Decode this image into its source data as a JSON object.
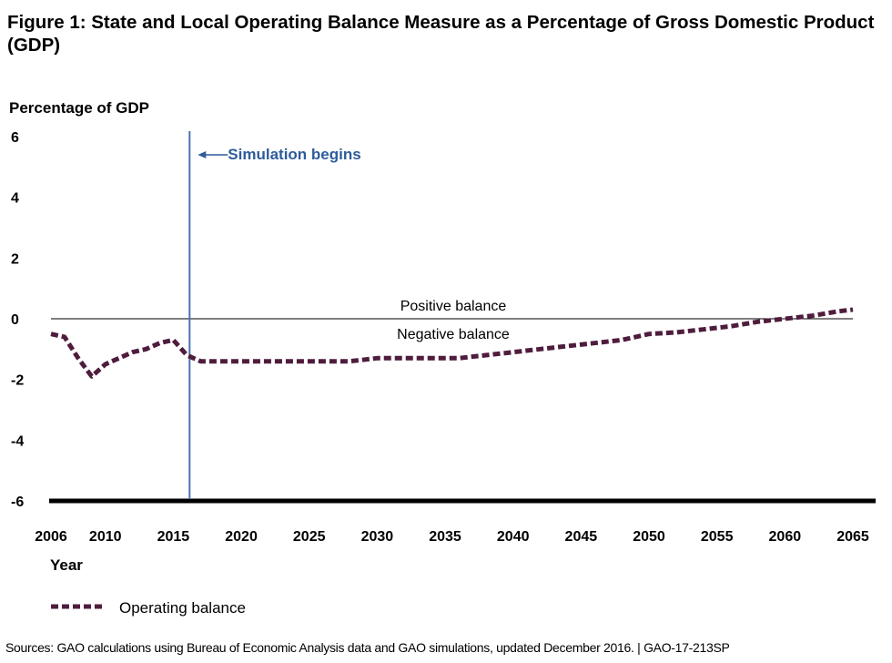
{
  "page": {
    "title": "Figure 1: State and Local Operating Balance Measure as a Percentage of Gross Domestic Product (GDP)",
    "source": "Sources: GAO calculations using Bureau of Economic Analysis data and GAO simulations, updated December 2016. | GAO-17-213SP"
  },
  "chart_data": {
    "type": "line",
    "title": "Figure 1: State and Local Operating Balance Measure as a Percentage of Gross Domestic Product (GDP)",
    "xlabel": "Year",
    "ylabel": "Percentage of GDP",
    "xlim": [
      2006,
      2065
    ],
    "ylim": [
      -6,
      6
    ],
    "x_ticks": [
      2006,
      2010,
      2015,
      2020,
      2025,
      2030,
      2035,
      2040,
      2045,
      2050,
      2055,
      2060,
      2065
    ],
    "y_ticks": [
      6,
      4,
      2,
      0,
      -2,
      -4,
      -6
    ],
    "grid": false,
    "legend": "bottom-left",
    "colors": {
      "series": "#4f1c3d",
      "marker": "#4a72b0",
      "marker_text": "#2e5c9a",
      "zero_line": "#000000"
    },
    "annotations": {
      "marker_label": "Simulation begins",
      "marker_x": 2016.2,
      "positive_label": "Positive balance",
      "negative_label": "Negative balance"
    },
    "series": [
      {
        "name": "Operating balance",
        "style": "dashed",
        "x": [
          2006,
          2007,
          2008,
          2009,
          2010,
          2011,
          2012,
          2013,
          2014,
          2015,
          2016,
          2017,
          2018,
          2020,
          2022,
          2024,
          2026,
          2028,
          2030,
          2032,
          2034,
          2036,
          2038,
          2040,
          2042,
          2044,
          2046,
          2048,
          2050,
          2052,
          2054,
          2056,
          2058,
          2060,
          2062,
          2064,
          2065
        ],
        "values": [
          -0.5,
          -0.6,
          -1.3,
          -1.9,
          -1.5,
          -1.3,
          -1.1,
          -1.0,
          -0.8,
          -0.7,
          -1.2,
          -1.4,
          -1.4,
          -1.4,
          -1.4,
          -1.4,
          -1.4,
          -1.4,
          -1.3,
          -1.3,
          -1.3,
          -1.3,
          -1.2,
          -1.1,
          -1.0,
          -0.9,
          -0.8,
          -0.7,
          -0.5,
          -0.45,
          -0.35,
          -0.25,
          -0.1,
          0.0,
          0.1,
          0.25,
          0.3
        ]
      }
    ]
  }
}
